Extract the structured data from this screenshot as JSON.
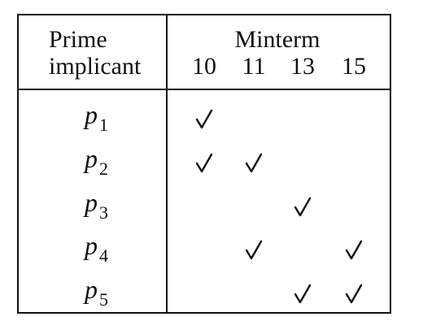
{
  "table": {
    "header": {
      "left_line1": "Prime",
      "left_line2": "implicant",
      "group_label": "Minterm",
      "minterms": [
        "10",
        "11",
        "13",
        "15"
      ]
    },
    "rows": [
      {
        "symbol": "p",
        "subscript": "1",
        "covers": [
          true,
          false,
          false,
          false
        ]
      },
      {
        "symbol": "p",
        "subscript": "2",
        "covers": [
          true,
          true,
          false,
          false
        ]
      },
      {
        "symbol": "p",
        "subscript": "3",
        "covers": [
          false,
          false,
          true,
          false
        ]
      },
      {
        "symbol": "p",
        "subscript": "4",
        "covers": [
          false,
          true,
          false,
          true
        ]
      },
      {
        "symbol": "p",
        "subscript": "5",
        "covers": [
          false,
          false,
          true,
          true
        ]
      }
    ],
    "check_icon": "check-mark-icon",
    "line_color": "#111111"
  }
}
